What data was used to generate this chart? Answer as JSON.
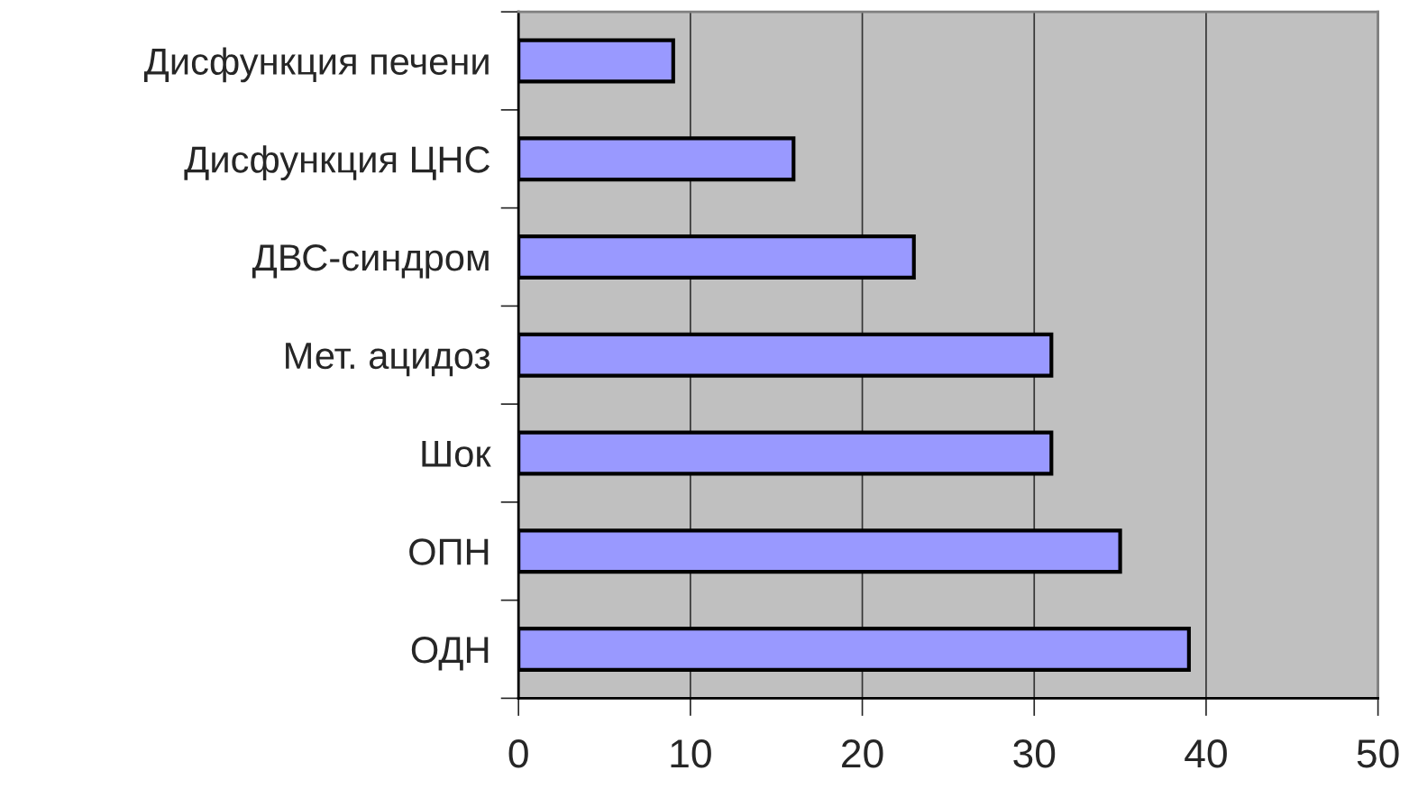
{
  "chart_data": {
    "type": "bar",
    "orientation": "horizontal",
    "categories": [
      "Дисфункция печени",
      "Дисфункция ЦНС",
      "ДВС-синдром",
      "Мет. ацидоз",
      "Шок",
      "ОПН",
      "ОДН"
    ],
    "values": [
      9,
      16,
      23,
      31,
      31,
      35,
      39
    ],
    "color": "#9999ff",
    "xlim": [
      0,
      50
    ],
    "xticks": [
      0,
      10,
      20,
      30,
      40,
      50
    ],
    "grid": "x",
    "legend": false
  }
}
